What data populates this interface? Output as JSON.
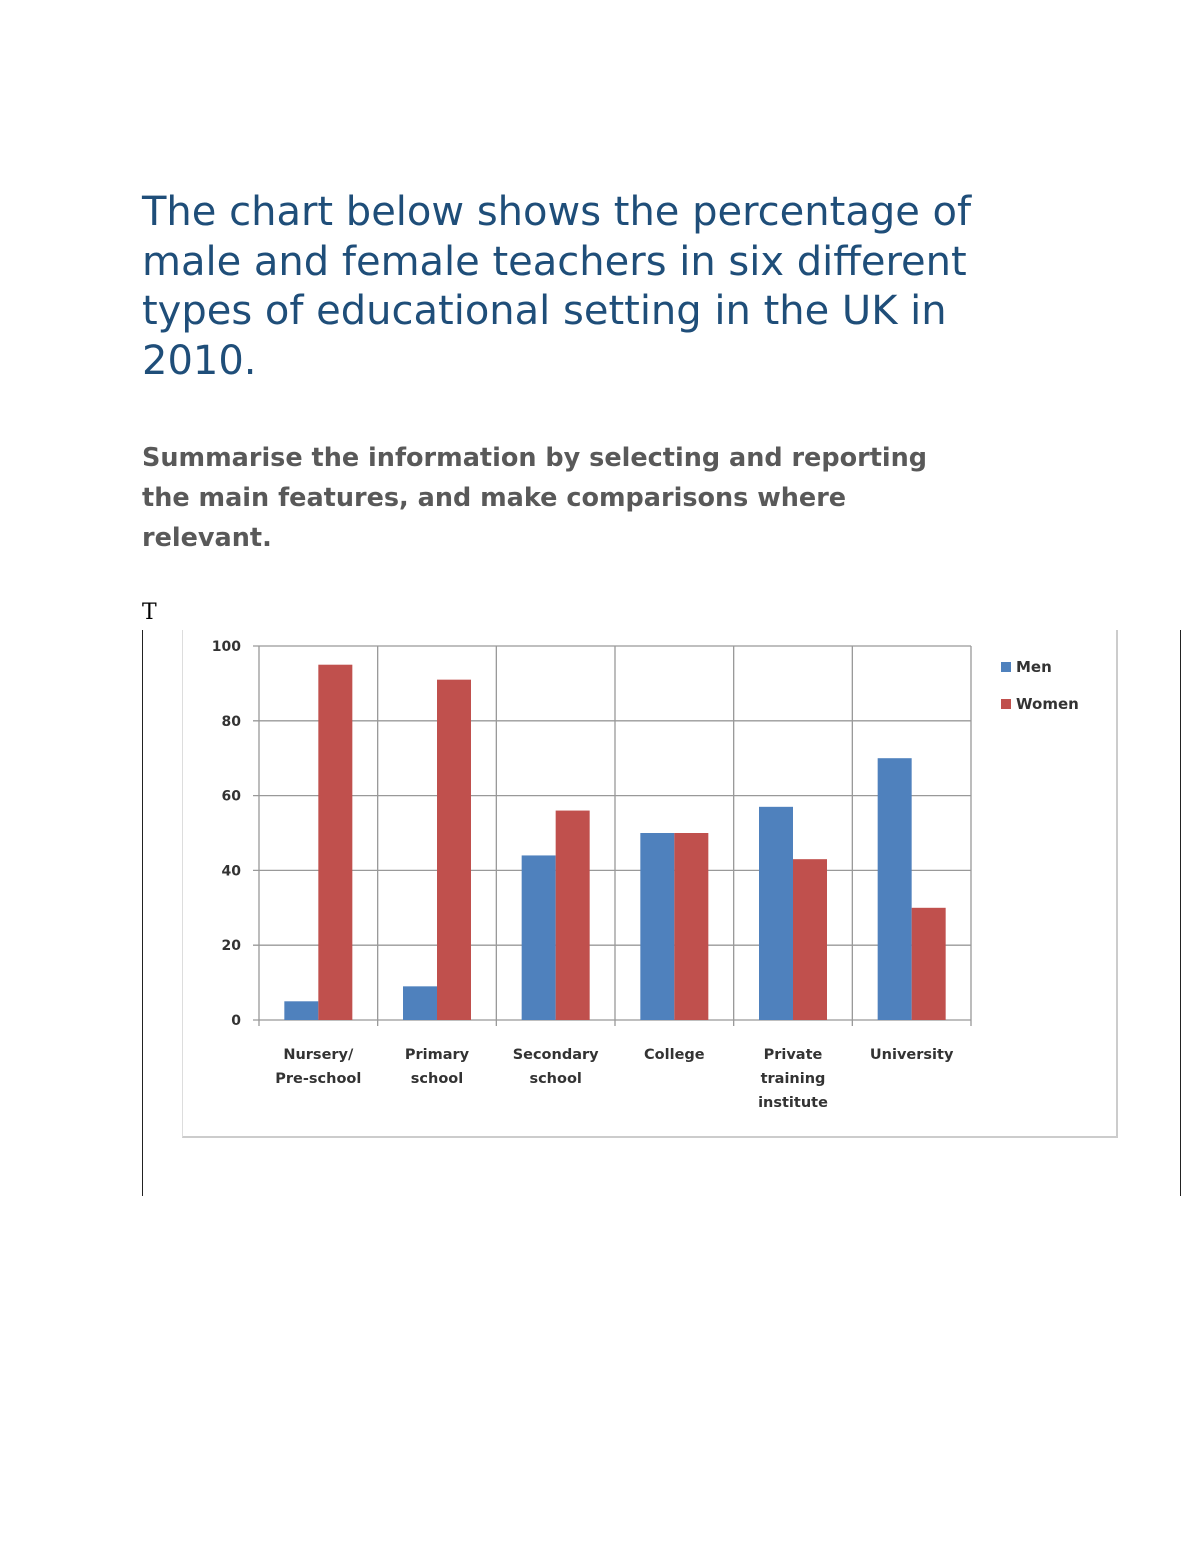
{
  "document": {
    "title_lines": [
      "The chart below shows the percentage of",
      "male and female teachers in six different",
      "types of educational setting in the UK in",
      "2010."
    ],
    "instruction_lines": [
      "Summarise the information by selecting and reporting",
      "the main features, and make comparisons where",
      "relevant."
    ],
    "stray_text": "T"
  },
  "chart_data": {
    "type": "bar",
    "categories": [
      [
        "Nursery/",
        "Pre-school"
      ],
      [
        "Primary",
        "school"
      ],
      [
        "Secondary",
        "school"
      ],
      [
        "College"
      ],
      [
        "Private",
        "training",
        "institute"
      ],
      [
        "University"
      ]
    ],
    "series": [
      {
        "name": "Men",
        "color": "#4f81bd",
        "values": [
          5,
          9,
          44,
          50,
          57,
          70
        ]
      },
      {
        "name": "Women",
        "color": "#c0504d",
        "values": [
          95,
          91,
          56,
          50,
          43,
          30
        ]
      }
    ],
    "ylim": [
      0,
      100
    ],
    "yticks": [
      0,
      20,
      40,
      60,
      80,
      100
    ],
    "grid": true,
    "legend": "right"
  }
}
